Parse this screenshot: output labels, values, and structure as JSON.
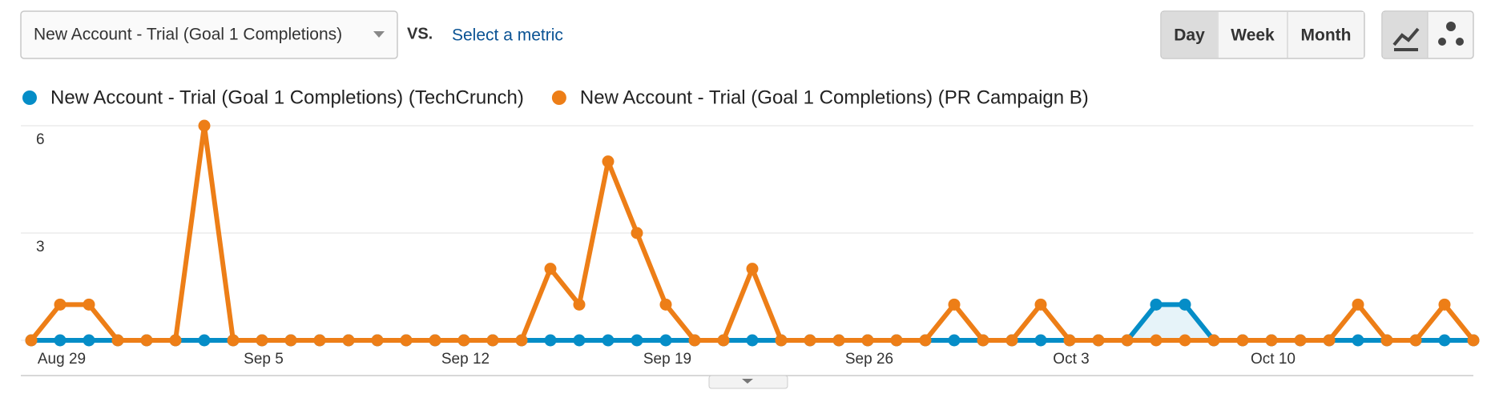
{
  "controls": {
    "metric": "New Account - Trial (Goal 1 Completions)",
    "vs": "VS.",
    "select_metric": "Select a metric",
    "periods": [
      "Day",
      "Week",
      "Month"
    ]
  },
  "chart_data": {
    "type": "line",
    "categories": [
      null,
      "Aug 29",
      null,
      null,
      null,
      null,
      null,
      null,
      "Sep 5",
      null,
      null,
      null,
      null,
      null,
      null,
      "Sep 12",
      null,
      null,
      null,
      null,
      null,
      null,
      "Sep 19",
      null,
      null,
      null,
      null,
      null,
      null,
      "Sep 26",
      null,
      null,
      null,
      null,
      null,
      null,
      "Oct 3",
      null,
      null,
      null,
      null,
      null,
      null,
      "Oct 10",
      null,
      null,
      null,
      null,
      null,
      null,
      null
    ],
    "series": [
      {
        "name": "New Account - Trial (Goal 1 Completions) (TechCrunch)",
        "color": "#058dc7",
        "area": true,
        "values": [
          0,
          0,
          0,
          0,
          0,
          0,
          0,
          0,
          0,
          0,
          0,
          0,
          0,
          0,
          0,
          0,
          0,
          0,
          0,
          0,
          0,
          0,
          0,
          0,
          0,
          0,
          0,
          0,
          0,
          0,
          0,
          0,
          0,
          0,
          0,
          0,
          0,
          0,
          0,
          1,
          1,
          0,
          0,
          0,
          0,
          0,
          0,
          0,
          0,
          0,
          0
        ]
      },
      {
        "name": "New Account - Trial (Goal 1 Completions) (PR Campaign B)",
        "color": "#ed7e17",
        "values": [
          0,
          1,
          1,
          0,
          0,
          0,
          6,
          0,
          0,
          0,
          0,
          0,
          0,
          0,
          0,
          0,
          0,
          0,
          2,
          1,
          5,
          3,
          1,
          0,
          0,
          2,
          0,
          0,
          0,
          0,
          0,
          0,
          1,
          0,
          0,
          1,
          0,
          0,
          0,
          0,
          0,
          0,
          0,
          0,
          0,
          0,
          1,
          0,
          0,
          1,
          0
        ]
      }
    ],
    "ylim": [
      0,
      6
    ],
    "yticks": [
      3,
      6
    ],
    "grid": true
  }
}
